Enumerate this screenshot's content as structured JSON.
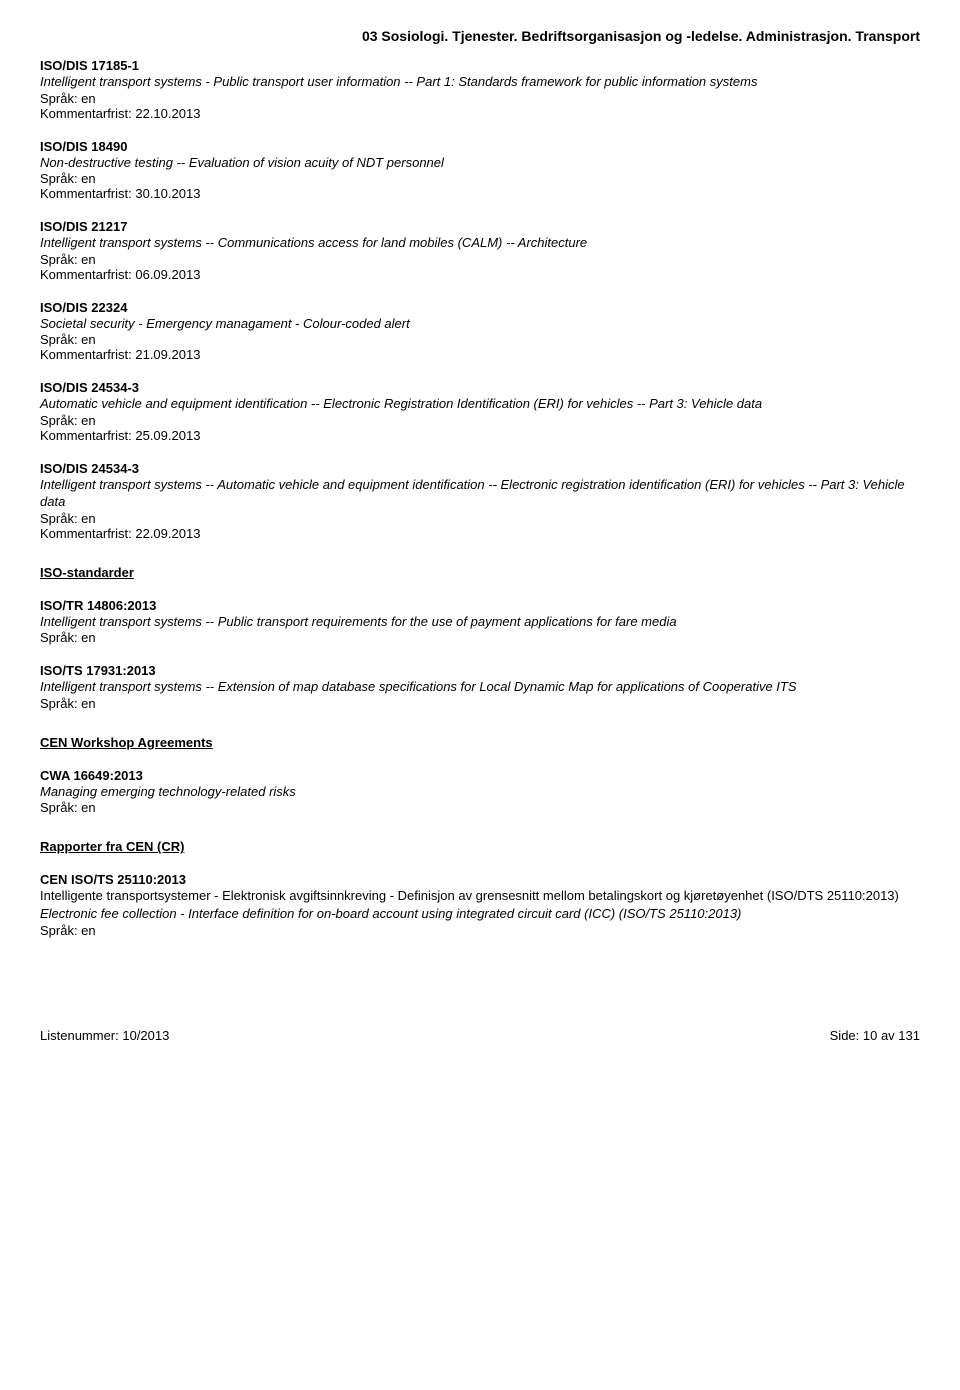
{
  "category_header": "03  Sosiologi. Tjenester. Bedriftsorganisasjon og -ledelse. Administrasjon. Transport",
  "lang_label": "Språk: en",
  "deadline_label": "Kommentarfrist: ",
  "entries": [
    {
      "id": "ISO/DIS 17185-1",
      "title": "Intelligent transport systems - Public transport user information -- Part 1: Standards framework for public information systems",
      "deadline": "22.10.2013"
    },
    {
      "id": "ISO/DIS 18490",
      "title": "Non-destructive testing -- Evaluation of vision acuity of NDT personnel",
      "deadline": "30.10.2013"
    },
    {
      "id": "ISO/DIS 21217",
      "title": "Intelligent transport systems -- Communications access for land mobiles (CALM) -- Architecture",
      "deadline": "06.09.2013"
    },
    {
      "id": "ISO/DIS 22324",
      "title": "Societal security - Emergency managament - Colour-coded alert",
      "deadline": "21.09.2013"
    },
    {
      "id": "ISO/DIS 24534-3",
      "title": "Automatic vehicle and equipment identification -- Electronic Registration Identification (ERI) for vehicles -- Part 3: Vehicle data",
      "deadline": "25.09.2013"
    },
    {
      "id": "ISO/DIS 24534-3",
      "title": "Intelligent transport systems -- Automatic vehicle and equipment identification -- Electronic registration identification (ERI) for vehicles -- Part 3: Vehicle data",
      "deadline": "22.09.2013"
    }
  ],
  "sections": {
    "iso_standarder": {
      "heading": "ISO-standarder",
      "items": [
        {
          "id": "ISO/TR 14806:2013",
          "title": "Intelligent transport systems -- Public transport requirements for the use of payment applications for fare media"
        },
        {
          "id": "ISO/TS 17931:2013",
          "title": "Intelligent transport systems -- Extension of map database specifications for Local Dynamic Map for applications of Cooperative ITS"
        }
      ]
    },
    "cen_workshop": {
      "heading": "CEN Workshop Agreements",
      "items": [
        {
          "id": "CWA 16649:2013",
          "title": "Managing emerging technology-related risks"
        }
      ]
    },
    "rapporter": {
      "heading": "Rapporter fra CEN (CR)",
      "items": [
        {
          "id": "CEN ISO/TS 25110:2013",
          "subtitle": "Intelligente transportsystemer - Elektronisk avgiftsinnkreving - Definisjon av grensesnitt mellom betalingskort og kjøretøyenhet (ISO/DTS 25110:2013)",
          "title": "Electronic fee collection - Interface definition for on-board account using integrated circuit card (ICC) (ISO/TS 25110:2013)"
        }
      ]
    }
  },
  "footer": {
    "left": "Listenummer: 10/2013",
    "right": "Side: 10 av 131"
  }
}
